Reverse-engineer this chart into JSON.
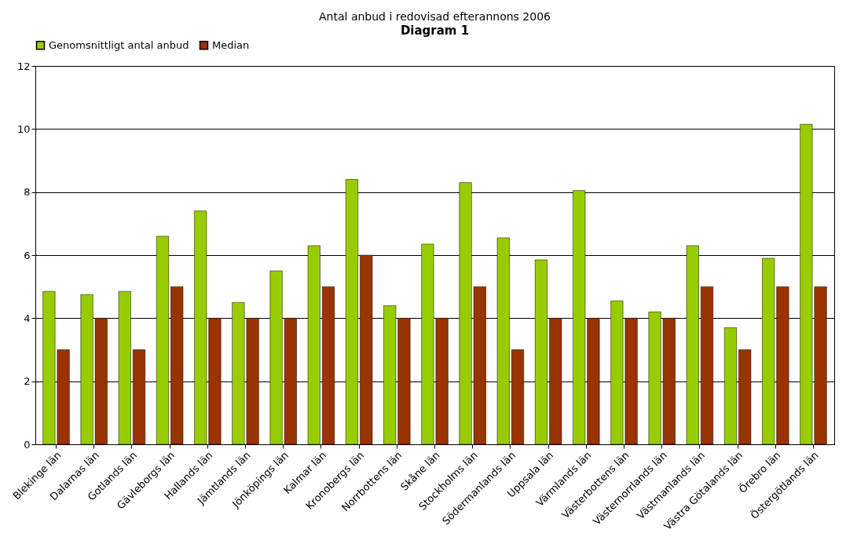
{
  "chart_data": {
    "type": "bar",
    "title": "Antal anbud i redovisad efterannons 2006",
    "annotations": [
      "Diagram 1"
    ],
    "categories": [
      "Blekinge län",
      "Dalarnas län",
      "Gotlands län",
      "Gävleborgs län",
      "Hallands län",
      "Jämtlands län",
      "Jönköpings län",
      "Kalmar län",
      "Kronobergs län",
      "Norrbottens län",
      "Skåne län",
      "Stockholms län",
      "Södermanlands län",
      "Uppsala län",
      "Värmlands län",
      "Västerbottens län",
      "Västernorrlands län",
      "Västmanlands län",
      "Västra Götalands län",
      "Örebro län",
      "Östergötlands län"
    ],
    "series": [
      {
        "name": "Genomsnittligt antal anbud",
        "color": "#99cc00",
        "values": [
          4.85,
          4.75,
          4.85,
          6.6,
          7.4,
          4.5,
          5.5,
          6.3,
          8.4,
          4.4,
          6.35,
          8.3,
          6.55,
          5.85,
          8.05,
          4.55,
          4.2,
          6.3,
          3.7,
          5.9,
          10.15
        ]
      },
      {
        "name": "Median",
        "color": "#993300",
        "values": [
          3,
          4,
          3,
          5,
          4,
          4,
          4,
          5,
          6,
          4,
          4,
          5,
          3,
          4,
          4,
          4,
          4,
          5,
          3,
          5,
          5
        ]
      }
    ],
    "ylim": [
      0,
      12
    ],
    "yticks": [
      0,
      2,
      4,
      6,
      8,
      10,
      12
    ],
    "grid": "y",
    "legend": "top"
  }
}
